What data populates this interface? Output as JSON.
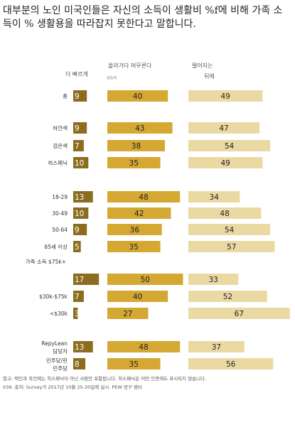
{
  "title": "대부분의 노인 미국인들은 자신의 소득이 생활비 %f에 비해 가족 소득이 % 생활용을 따라잡지 못한다고 말합니다.",
  "note_lines": [
    "참고: 백인과 흑인에는 히스패닉이 아닌 사람만 포함됩니다. 히스패닉은 어떤 인종에도 표시되지 않습니다.",
    "039. 출처: Survey가 2017년 10월 25-30일에 실시. PEW 연구 센터"
  ],
  "chart_data": {
    "type": "bar",
    "subtype": "stacked-horizontal-segments",
    "column_headers": [
      "더 빠르게",
      "올라가다 머무른다",
      "떨어지는",
      "뒤에"
    ],
    "column_subheader": "상승세",
    "colors": {
      "faster": "#8c6d1f",
      "keeping_up": "#d4a833",
      "falling_behind": "#ebd9a3"
    },
    "categories": [
      "총",
      "하얀색",
      "검은색",
      "히스패닉",
      "18-29",
      "30-49",
      "50-64",
      "65세 이상",
      "가족 소득 $75k+",
      "$30k-$75k",
      "<$30k",
      "RepyLean 담당자",
      "민주당/린 민주당"
    ],
    "series": [
      {
        "name": "더 빠르게",
        "values": [
          9,
          9,
          7,
          10,
          13,
          10,
          9,
          5,
          17,
          7,
          3,
          13,
          8
        ]
      },
      {
        "name": "올라가다 머무른다",
        "values": [
          40,
          43,
          38,
          35,
          48,
          42,
          36,
          35,
          50,
          40,
          27,
          48,
          35
        ]
      },
      {
        "name": "떨어지는 뒤에",
        "values": [
          49,
          47,
          54,
          49,
          34,
          48,
          54,
          57,
          33,
          52,
          67,
          37,
          56
        ]
      }
    ]
  }
}
